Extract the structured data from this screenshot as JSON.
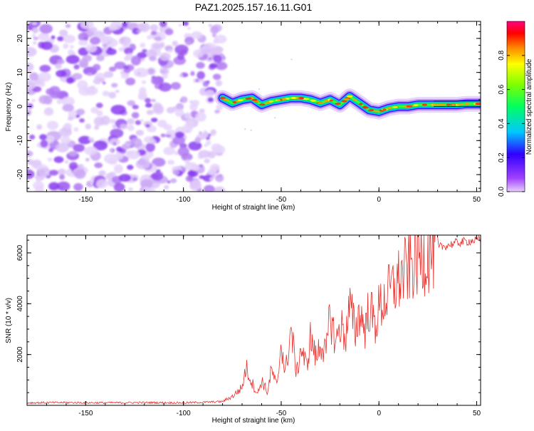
{
  "figure": {
    "title": "PAZ1.2025.157.16.11.G01"
  },
  "chart_data": [
    {
      "type": "heatmap",
      "xlabel": "Height of straight line (km)",
      "ylabel": "Frequency (Hz)",
      "xlim": [
        -180,
        52
      ],
      "ylim": [
        -25,
        25
      ],
      "xticks": [
        -150,
        -100,
        -50,
        0,
        50
      ],
      "yticks": [
        -20,
        -10,
        0,
        10,
        20
      ],
      "noise_region_x": [
        -180,
        -80
      ],
      "signal_trace": {
        "x": [
          -80,
          -75,
          -70,
          -65,
          -60,
          -55,
          -50,
          -45,
          -40,
          -35,
          -30,
          -25,
          -20,
          -15,
          -10,
          -5,
          0,
          5,
          10,
          15,
          20,
          25,
          30,
          35,
          40,
          45,
          50,
          52
        ],
        "freq": [
          2.5,
          1.0,
          2.0,
          2.5,
          0.5,
          1.5,
          2.0,
          2.5,
          2.5,
          2.0,
          1.0,
          2.0,
          0.5,
          3.0,
          1.0,
          -1.0,
          -1.5,
          -0.5,
          0.0,
          0.0,
          0.5,
          0.5,
          0.5,
          0.5,
          0.5,
          0.8,
          0.8,
          0.8
        ]
      },
      "colorbar": {
        "label": "Normalized spectral amplitude",
        "range": [
          0,
          1
        ],
        "ticks": [
          "0.0",
          "0.2",
          "0.4",
          "0.6",
          "0.8"
        ]
      },
      "grid": false
    },
    {
      "type": "line",
      "xlabel": "Height of straight line (km)",
      "ylabel": "SNR (10 * v/v)",
      "xlim": [
        -180,
        52
      ],
      "ylim": [
        0,
        6700
      ],
      "xticks": [
        -150,
        -100,
        -50,
        0,
        50
      ],
      "yticks": [
        2000,
        4000,
        6000
      ],
      "series": [
        {
          "color": "#e8302c",
          "x": [
            -180,
            -160,
            -140,
            -120,
            -100,
            -90,
            -80,
            -75,
            -70,
            -68,
            -65,
            -62,
            -60,
            -57,
            -55,
            -52,
            -50,
            -48,
            -45,
            -42,
            -40,
            -37,
            -35,
            -32,
            -30,
            -27,
            -25,
            -22,
            -20,
            -17,
            -15,
            -12,
            -10,
            -7,
            -5,
            -2,
            0,
            5,
            10,
            15,
            20,
            25,
            30,
            35,
            40,
            45,
            50,
            52
          ],
          "y": [
            100,
            110,
            100,
            110,
            100,
            120,
            150,
            350,
            700,
            1500,
            900,
            450,
            1000,
            500,
            1400,
            700,
            2600,
            1200,
            3000,
            1200,
            2300,
            1500,
            2700,
            1800,
            2500,
            2000,
            3600,
            2400,
            3200,
            2700,
            3900,
            2900,
            3700,
            3000,
            3900,
            3100,
            3800,
            4400,
            4900,
            5400,
            5800,
            6000,
            6200,
            6300,
            6400,
            6450,
            6500,
            6500
          ]
        }
      ],
      "grid": false
    }
  ]
}
